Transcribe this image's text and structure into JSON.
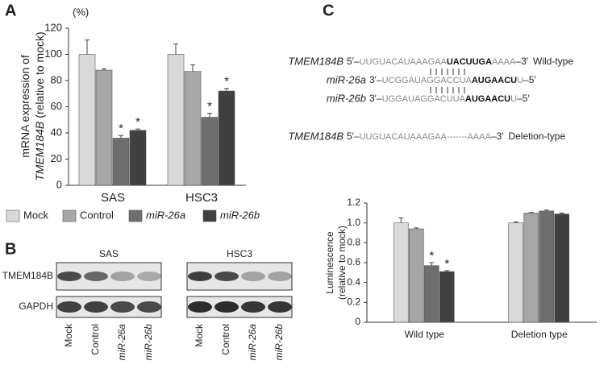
{
  "chart_data": [
    {
      "type": "bar",
      "panel": "A",
      "unit": "(%)",
      "ylabel": [
        "mRNA expression of",
        "TMEM184B",
        "(relative to mock)"
      ],
      "categories": [
        "SAS",
        "HSC3"
      ],
      "series": [
        {
          "name": "Mock",
          "color": "#d9d9d9",
          "values": [
            100,
            100
          ],
          "errors": [
            11,
            8
          ]
        },
        {
          "name": "Control",
          "color": "#a6a6a6",
          "values": [
            88,
            87
          ],
          "errors": [
            1,
            5
          ]
        },
        {
          "name": "miR-26a",
          "color": "#6e6e6e",
          "values": [
            36,
            52
          ],
          "errors": [
            2,
            3
          ],
          "significance": [
            "*",
            "*"
          ]
        },
        {
          "name": "miR-26b",
          "color": "#404040",
          "values": [
            42,
            72
          ],
          "errors": [
            1,
            2
          ],
          "significance": [
            "*",
            "*"
          ]
        }
      ],
      "ylim": [
        0,
        120
      ],
      "yticks": [
        0,
        20,
        40,
        60,
        80,
        100,
        120
      ],
      "legend": "bottom"
    },
    {
      "type": "bar",
      "panel": "C",
      "ylabel": [
        "Luminescence",
        "(relative to mock)"
      ],
      "categories": [
        "Wild type",
        "Deletion type"
      ],
      "series": [
        {
          "color": "#d9d9d9",
          "values": [
            1.0,
            1.0
          ],
          "errors": [
            0.05,
            0.01
          ]
        },
        {
          "color": "#a6a6a6",
          "values": [
            0.94,
            1.1
          ],
          "errors": [
            0.01,
            0.005
          ]
        },
        {
          "color": "#6e6e6e",
          "values": [
            0.57,
            1.12
          ],
          "errors": [
            0.03,
            0.01
          ],
          "significance": [
            "*",
            null
          ]
        },
        {
          "color": "#404040",
          "values": [
            0.51,
            1.09
          ],
          "errors": [
            0.01,
            0.01
          ],
          "significance": [
            "*",
            null
          ]
        }
      ],
      "ylim": [
        0,
        1.2
      ],
      "yticks": [
        0,
        0.2,
        0.4,
        0.6,
        {
          "value": 0.8,
          "label": "0.8"
        },
        {
          "value": 1,
          "label": "1.0"
        },
        1.2
      ]
    }
  ],
  "blot": {
    "panel": "B",
    "groups": [
      "SAS",
      "HSC3"
    ],
    "rows": [
      "TMEM184B",
      "GAPDH"
    ],
    "lanes": [
      "Mock",
      "Control",
      "miR-26a",
      "miR-26b"
    ]
  },
  "sequences": [
    {
      "name": "TMEM184B",
      "start": "5′–",
      "seq": "UUGUACAUAAAGAA",
      "seed": "UACUUGA",
      "tail": "AAAA",
      "end": "–3′",
      "note": "Wild-type"
    },
    {
      "name": "miR-26a",
      "start": "3′–",
      "seq": "UCGGAUAGGACCUA",
      "seed": "AUGAACU",
      "tail": "U",
      "end": "–5′"
    },
    {
      "name": "miR-26b",
      "start": "3′–",
      "seq": "UGGAUAGGACUUA",
      "seed": "AUGAACU",
      "tail": "U",
      "end": "–5′"
    },
    {
      "name": "TMEM184B",
      "start": "5′–",
      "seq": "UUGUACAUAAAGAA",
      "seed": "-------",
      "tail": "AAAA",
      "end": "–3′",
      "note": "Deletion-type"
    }
  ]
}
